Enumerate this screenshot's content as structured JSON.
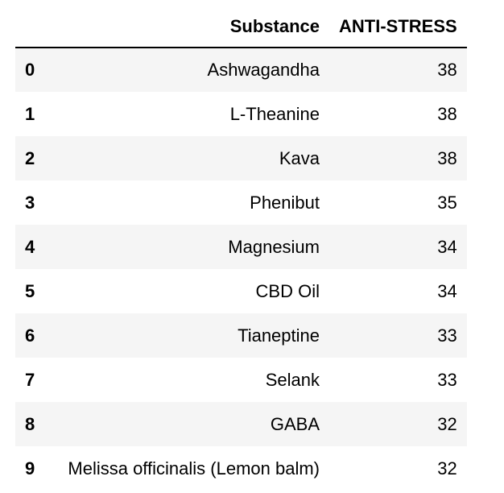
{
  "table": {
    "columns": {
      "index": "",
      "substance": "Substance",
      "anti_stress": "ANTI-STRESS"
    },
    "rows": [
      {
        "index": "0",
        "substance": "Ashwagandha",
        "anti_stress": "38"
      },
      {
        "index": "1",
        "substance": "L-Theanine",
        "anti_stress": "38"
      },
      {
        "index": "2",
        "substance": "Kava",
        "anti_stress": "38"
      },
      {
        "index": "3",
        "substance": "Phenibut",
        "anti_stress": "35"
      },
      {
        "index": "4",
        "substance": "Magnesium",
        "anti_stress": "34"
      },
      {
        "index": "5",
        "substance": "CBD Oil",
        "anti_stress": "34"
      },
      {
        "index": "6",
        "substance": "Tianeptine",
        "anti_stress": "33"
      },
      {
        "index": "7",
        "substance": "Selank",
        "anti_stress": "33"
      },
      {
        "index": "8",
        "substance": "GABA",
        "anti_stress": "32"
      },
      {
        "index": "9",
        "substance": "Melissa officinalis (Lemon balm)",
        "anti_stress": "32"
      }
    ]
  },
  "colors": {
    "stripe": "#f5f5f5",
    "background": "#ffffff",
    "text": "#000000",
    "header_rule": "#000000"
  }
}
